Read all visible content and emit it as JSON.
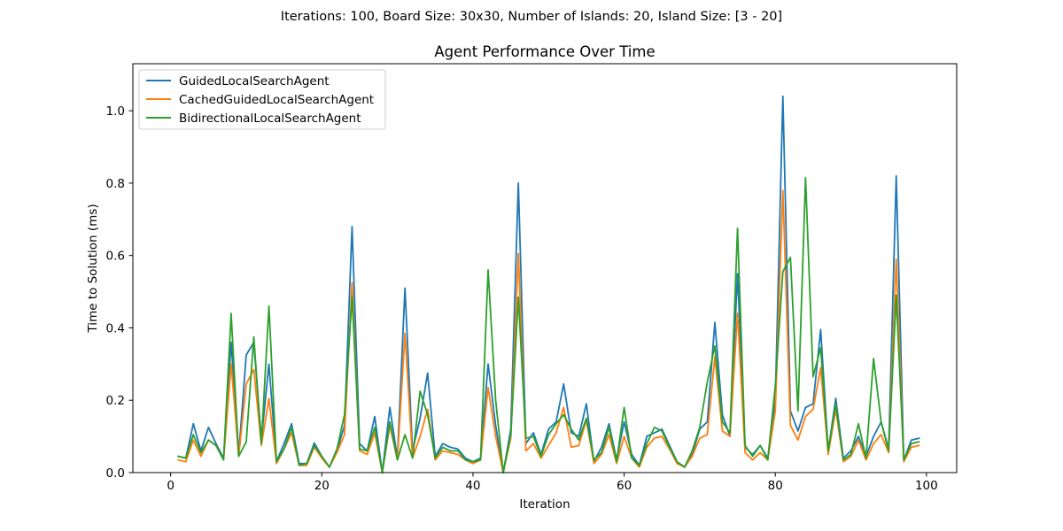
{
  "suptitle": "Iterations: 100, Board Size: 30x30, Number of Islands: 20, Island Size: [3 - 20]",
  "chart_data": {
    "type": "line",
    "title": "Agent Performance Over Time",
    "xlabel": "Iteration",
    "ylabel": "Time to Solution (ms)",
    "xlim": [
      -5,
      104
    ],
    "ylim": [
      0,
      1.13
    ],
    "xticks": [
      0,
      20,
      40,
      60,
      80,
      100
    ],
    "yticks": [
      0.0,
      0.2,
      0.4,
      0.6,
      0.8,
      1.0
    ],
    "xtick_labels": [
      "0",
      "20",
      "40",
      "60",
      "80",
      "100"
    ],
    "ytick_labels": [
      "0.0",
      "0.2",
      "0.4",
      "0.6",
      "0.8",
      "1.0"
    ],
    "grid": false,
    "legend_position": "top-left",
    "x": [
      1,
      2,
      3,
      4,
      5,
      6,
      7,
      8,
      9,
      10,
      11,
      12,
      13,
      14,
      15,
      16,
      17,
      18,
      19,
      20,
      21,
      22,
      23,
      24,
      25,
      26,
      27,
      28,
      29,
      30,
      31,
      32,
      33,
      34,
      35,
      36,
      37,
      38,
      39,
      40,
      41,
      42,
      43,
      44,
      45,
      46,
      47,
      48,
      49,
      50,
      51,
      52,
      53,
      54,
      55,
      56,
      57,
      58,
      59,
      60,
      61,
      62,
      63,
      64,
      65,
      66,
      67,
      68,
      69,
      70,
      71,
      72,
      73,
      74,
      75,
      76,
      77,
      78,
      79,
      80,
      81,
      82,
      83,
      84,
      85,
      86,
      87,
      88,
      89,
      90,
      91,
      92,
      93,
      94,
      95,
      96,
      97,
      98,
      99
    ],
    "series": [
      {
        "name": "GuidedLocalSearchAgent",
        "color": "#1f77b4",
        "values": [
          0.045,
          0.04,
          0.135,
          0.06,
          0.125,
          0.08,
          0.04,
          0.36,
          0.05,
          0.325,
          0.36,
          0.09,
          0.3,
          0.03,
          0.08,
          0.135,
          0.025,
          0.025,
          0.082,
          0.045,
          0.015,
          0.06,
          0.13,
          0.68,
          0.08,
          0.06,
          0.155,
          0.0,
          0.18,
          0.04,
          0.51,
          0.06,
          0.15,
          0.275,
          0.045,
          0.08,
          0.07,
          0.065,
          0.04,
          0.03,
          0.04,
          0.3,
          0.13,
          0.0,
          0.12,
          0.8,
          0.08,
          0.11,
          0.05,
          0.12,
          0.14,
          0.245,
          0.11,
          0.1,
          0.19,
          0.03,
          0.07,
          0.135,
          0.035,
          0.14,
          0.05,
          0.02,
          0.1,
          0.11,
          0.12,
          0.075,
          0.03,
          0.015,
          0.05,
          0.12,
          0.14,
          0.415,
          0.16,
          0.1,
          0.55,
          0.07,
          0.05,
          0.075,
          0.04,
          0.2,
          1.04,
          0.17,
          0.115,
          0.18,
          0.19,
          0.395,
          0.06,
          0.205,
          0.04,
          0.06,
          0.1,
          0.045,
          0.1,
          0.14,
          0.065,
          0.82,
          0.035,
          0.09,
          0.095
        ]
      },
      {
        "name": "CachedGuidedLocalSearchAgent",
        "color": "#ff7f0e",
        "values": [
          0.035,
          0.03,
          0.09,
          0.045,
          0.09,
          0.075,
          0.035,
          0.3,
          0.045,
          0.245,
          0.285,
          0.075,
          0.205,
          0.025,
          0.065,
          0.11,
          0.02,
          0.02,
          0.07,
          0.04,
          0.015,
          0.055,
          0.105,
          0.525,
          0.06,
          0.05,
          0.11,
          0.0,
          0.13,
          0.035,
          0.385,
          0.04,
          0.1,
          0.175,
          0.035,
          0.06,
          0.055,
          0.05,
          0.035,
          0.025,
          0.035,
          0.235,
          0.1,
          0.0,
          0.095,
          0.605,
          0.06,
          0.08,
          0.04,
          0.075,
          0.11,
          0.18,
          0.07,
          0.075,
          0.145,
          0.025,
          0.05,
          0.105,
          0.025,
          0.1,
          0.04,
          0.015,
          0.07,
          0.095,
          0.1,
          0.065,
          0.025,
          0.015,
          0.045,
          0.095,
          0.105,
          0.32,
          0.115,
          0.1,
          0.44,
          0.055,
          0.035,
          0.055,
          0.035,
          0.17,
          0.78,
          0.13,
          0.09,
          0.155,
          0.175,
          0.29,
          0.05,
          0.175,
          0.03,
          0.045,
          0.09,
          0.035,
          0.08,
          0.105,
          0.055,
          0.59,
          0.03,
          0.07,
          0.075
        ]
      },
      {
        "name": "BidirectionalLocalSearchAgent",
        "color": "#2ca02c",
        "values": [
          0.045,
          0.04,
          0.105,
          0.055,
          0.09,
          0.075,
          0.035,
          0.44,
          0.045,
          0.085,
          0.375,
          0.08,
          0.46,
          0.03,
          0.065,
          0.125,
          0.02,
          0.025,
          0.075,
          0.045,
          0.015,
          0.065,
          0.16,
          0.485,
          0.065,
          0.06,
          0.125,
          0.0,
          0.14,
          0.035,
          0.105,
          0.04,
          0.225,
          0.16,
          0.04,
          0.07,
          0.06,
          0.06,
          0.035,
          0.03,
          0.035,
          0.56,
          0.2,
          0.0,
          0.105,
          0.485,
          0.095,
          0.1,
          0.045,
          0.105,
          0.135,
          0.16,
          0.12,
          0.09,
          0.15,
          0.035,
          0.055,
          0.125,
          0.03,
          0.18,
          0.04,
          0.02,
          0.08,
          0.125,
          0.115,
          0.07,
          0.03,
          0.015,
          0.06,
          0.125,
          0.25,
          0.35,
          0.14,
          0.11,
          0.675,
          0.075,
          0.045,
          0.075,
          0.035,
          0.24,
          0.555,
          0.595,
          0.17,
          0.815,
          0.265,
          0.345,
          0.06,
          0.19,
          0.035,
          0.05,
          0.135,
          0.04,
          0.315,
          0.14,
          0.06,
          0.49,
          0.035,
          0.08,
          0.085
        ]
      }
    ]
  }
}
